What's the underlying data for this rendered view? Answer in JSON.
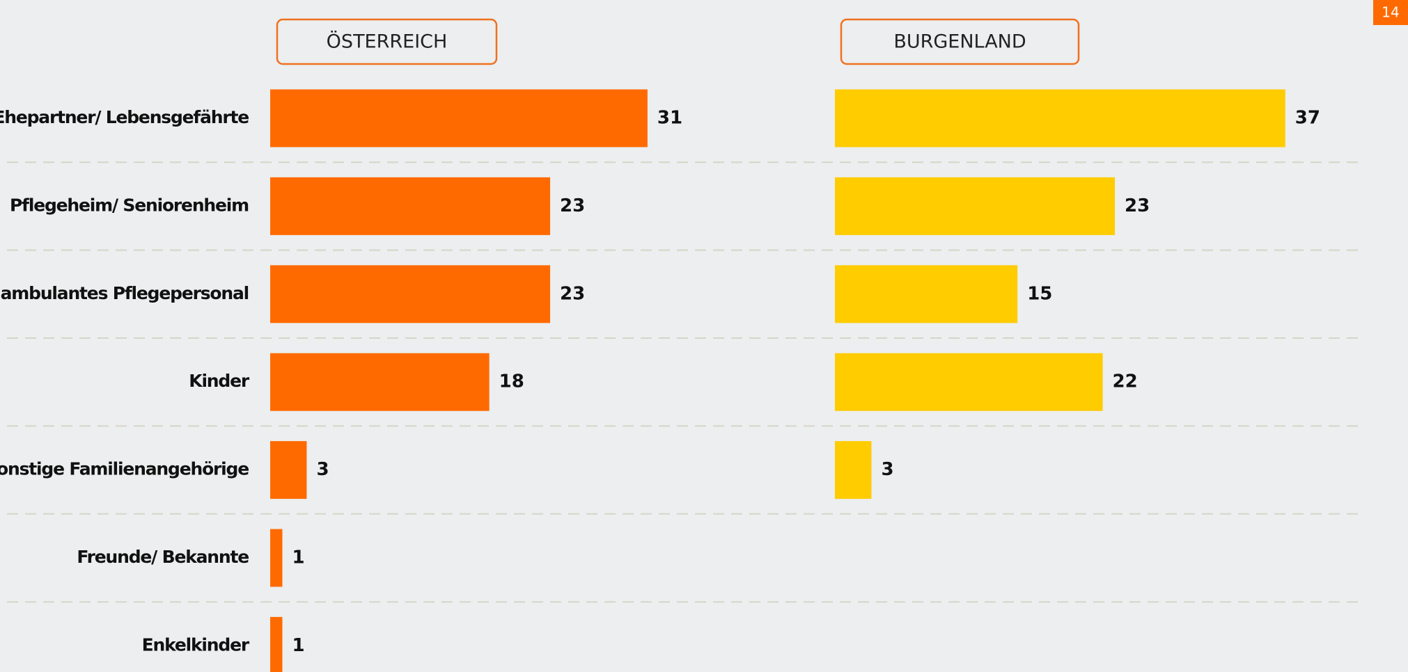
{
  "chart_data": [
    {
      "type": "bar",
      "title": "ÖSTERREICH",
      "categories": [
        "Ehepartner/ Lebensgefährte",
        "Pflegeheim/ Seniorenheim",
        "ambulantes Pflegepersonal",
        "Kinder",
        "sonstige Familienangehörige",
        "Freunde/ Bekannte",
        "Enkelkinder"
      ],
      "values": [
        31,
        23,
        23,
        18,
        3,
        1,
        1
      ],
      "color": "#ff6a00"
    },
    {
      "type": "bar",
      "title": "BURGENLAND",
      "values": [
        37,
        23,
        15,
        22,
        3,
        null,
        null
      ],
      "color": "#ffcc00"
    }
  ],
  "page_number": "14"
}
